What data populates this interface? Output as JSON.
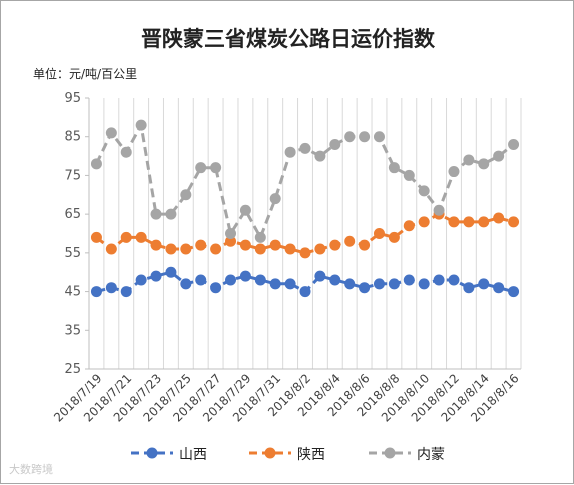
{
  "chart_data": {
    "type": "line",
    "title": "晋陕蒙三省煤炭公路日运价指数",
    "unit_label": "单位：元/吨/百公里",
    "ylim": [
      25,
      95
    ],
    "yticks": [
      25,
      35,
      45,
      55,
      65,
      75,
      85,
      95
    ],
    "grid": "vertical",
    "legend_position": "bottom",
    "x": [
      "2018/7/19",
      "2018/7/20",
      "2018/7/21",
      "2018/7/22",
      "2018/7/23",
      "2018/7/24",
      "2018/7/25",
      "2018/7/26",
      "2018/7/27",
      "2018/7/28",
      "2018/7/29",
      "2018/7/30",
      "2018/7/31",
      "2018/8/1",
      "2018/8/2",
      "2018/8/3",
      "2018/8/4",
      "2018/8/5",
      "2018/8/6",
      "2018/8/7",
      "2018/8/8",
      "2018/8/9",
      "2018/8/10",
      "2018/8/11",
      "2018/8/12",
      "2018/8/13",
      "2018/8/14",
      "2018/8/15",
      "2018/8/16"
    ],
    "x_tick_labels": [
      "2018/7/19",
      "2018/7/21",
      "2018/7/23",
      "2018/7/25",
      "2018/7/27",
      "2018/7/29",
      "2018/7/31",
      "2018/8/2",
      "2018/8/4",
      "2018/8/6",
      "2018/8/8",
      "2018/8/10",
      "2018/8/12",
      "2018/8/14",
      "2018/8/16"
    ],
    "series": [
      {
        "name": "山西",
        "color": "#4472c4",
        "values": [
          45,
          46,
          45,
          48,
          49,
          50,
          47,
          48,
          46,
          48,
          49,
          48,
          47,
          47,
          45,
          49,
          48,
          47,
          46,
          47,
          47,
          48,
          47,
          48,
          48,
          46,
          47,
          46,
          45
        ]
      },
      {
        "name": "陕西",
        "color": "#ed7d31",
        "values": [
          59,
          56,
          59,
          59,
          57,
          56,
          56,
          57,
          56,
          58,
          57,
          56,
          57,
          56,
          55,
          56,
          57,
          58,
          57,
          60,
          59,
          62,
          63,
          65,
          63,
          63,
          63,
          64,
          63
        ]
      },
      {
        "name": "内蒙",
        "color": "#a5a5a5",
        "values": [
          78,
          86,
          81,
          88,
          65,
          65,
          70,
          77,
          77,
          60,
          66,
          59,
          69,
          81,
          82,
          80,
          83,
          85,
          85,
          85,
          77,
          75,
          71,
          66,
          76,
          79,
          78,
          80,
          83
        ]
      }
    ]
  },
  "watermark": "大数跨境"
}
